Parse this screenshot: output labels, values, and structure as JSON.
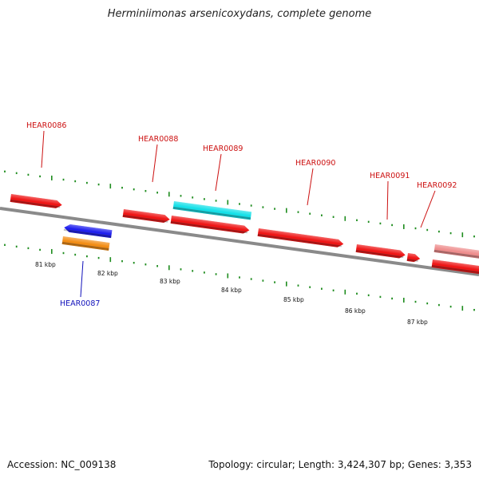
{
  "title": "Herminiimonas arsenicoxydans, complete genome",
  "accession_text": "Accession: NC_009138",
  "stats_text": "Topology: circular; Length: 3,424,307 bp; Genes: 3,353",
  "colors": {
    "backbone": "#8a8a8a",
    "ticks": "#1e8c1e",
    "forward_label": "#cc1111",
    "reverse_label": "#1111bb",
    "gene_red": "#ee1111",
    "gene_cyan": "#11e0e8",
    "gene_blue": "#1a1aee",
    "gene_orange": "#f28a10",
    "gene_pink": "#ee8a8a"
  },
  "scale_labels": [
    "81 kbp",
    "82 kbp",
    "83 kbp",
    "84 kbp",
    "85 kbp",
    "86 kbp",
    "87 kbp"
  ],
  "gene_labels": [
    {
      "text": "HEAR0086",
      "strand": "forward"
    },
    {
      "text": "HEAR0087",
      "strand": "reverse"
    },
    {
      "text": "HEAR0088",
      "strand": "forward"
    },
    {
      "text": "HEAR0089",
      "strand": "forward"
    },
    {
      "text": "HEAR0090",
      "strand": "forward"
    },
    {
      "text": "HEAR0091",
      "strand": "forward"
    },
    {
      "text": "HEAR0092",
      "strand": "forward"
    }
  ]
}
